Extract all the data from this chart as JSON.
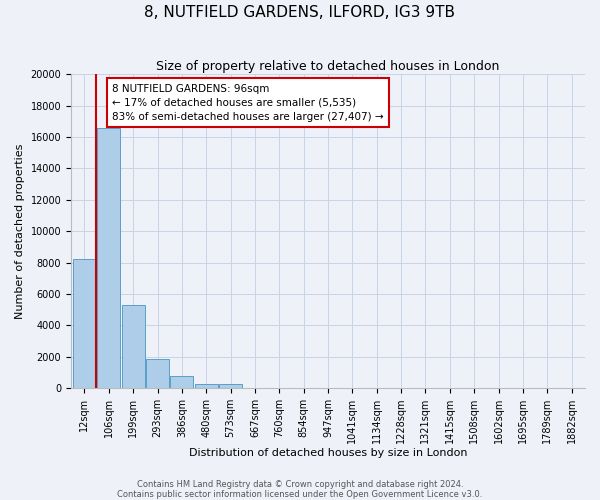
{
  "title": "8, NUTFIELD GARDENS, ILFORD, IG3 9TB",
  "subtitle": "Size of property relative to detached houses in London",
  "xlabel": "Distribution of detached houses by size in London",
  "ylabel": "Number of detached properties",
  "bar_labels": [
    "12sqm",
    "106sqm",
    "199sqm",
    "293sqm",
    "386sqm",
    "480sqm",
    "573sqm",
    "667sqm",
    "760sqm",
    "854sqm",
    "947sqm",
    "1041sqm",
    "1134sqm",
    "1228sqm",
    "1321sqm",
    "1415sqm",
    "1508sqm",
    "1602sqm",
    "1695sqm",
    "1789sqm",
    "1882sqm"
  ],
  "bar_values": [
    8200,
    16600,
    5300,
    1850,
    780,
    280,
    280,
    0,
    0,
    0,
    0,
    0,
    0,
    0,
    0,
    0,
    0,
    0,
    0,
    0,
    0
  ],
  "bar_color": "#aecde8",
  "bar_edge_color": "#5a9ec9",
  "pct_smaller": 17,
  "count_smaller": 5535,
  "pct_larger_semi": 83,
  "count_larger_semi": 27407,
  "annotation_box_edge_color": "#cc0000",
  "annotation_line_color": "#cc0000",
  "ylim": [
    0,
    20000
  ],
  "yticks": [
    0,
    2000,
    4000,
    6000,
    8000,
    10000,
    12000,
    14000,
    16000,
    18000,
    20000
  ],
  "background_color": "#eef2f8",
  "plot_bg_color": "#eef2f8",
  "footer_line1": "Contains HM Land Registry data © Crown copyright and database right 2024.",
  "footer_line2": "Contains public sector information licensed under the Open Government Licence v3.0.",
  "title_fontsize": 11,
  "subtitle_fontsize": 9,
  "xlabel_fontsize": 8,
  "ylabel_fontsize": 8,
  "tick_fontsize": 7,
  "footer_fontsize": 6,
  "ann_fontsize": 7.5
}
